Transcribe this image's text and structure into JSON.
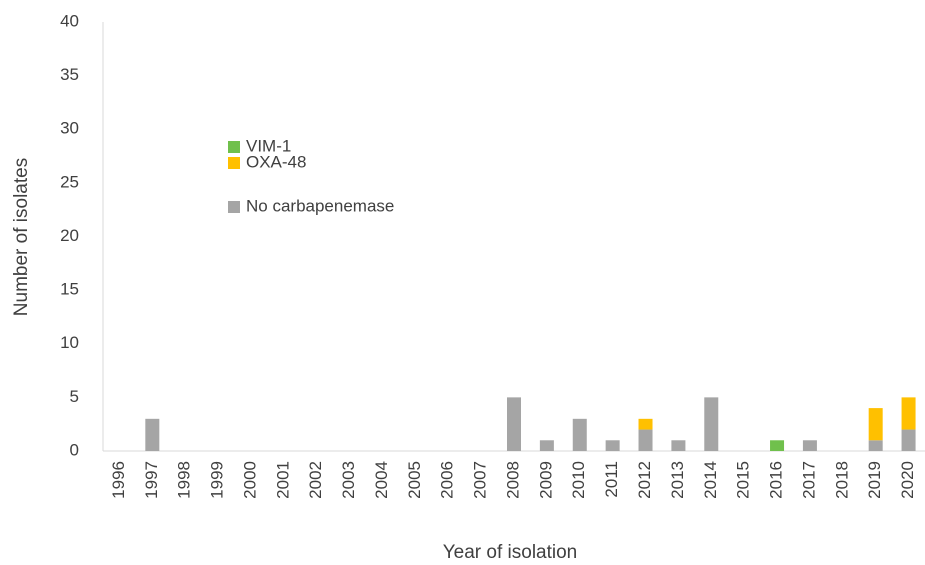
{
  "chart_data": {
    "type": "stacked_bar",
    "categories": [
      "1996",
      "1997",
      "1998",
      "1999",
      "2000",
      "2001",
      "2002",
      "2003",
      "2004",
      "2005",
      "2006",
      "2007",
      "2008",
      "2009",
      "2010",
      "2011",
      "2012",
      "2013",
      "2014",
      "2015",
      "2016",
      "2017",
      "2018",
      "2019",
      "2020"
    ],
    "series": [
      {
        "name": "No carbapenemase",
        "color": "#a5a5a5",
        "values": [
          0,
          3,
          0,
          0,
          0,
          0,
          0,
          0,
          0,
          0,
          0,
          0,
          5,
          1,
          3,
          1,
          2,
          1,
          5,
          0,
          0,
          1,
          0,
          1,
          2
        ]
      },
      {
        "name": "OXA-48",
        "color": "#ffc000",
        "values": [
          0,
          0,
          0,
          0,
          0,
          0,
          0,
          0,
          0,
          0,
          0,
          0,
          0,
          0,
          0,
          0,
          1,
          0,
          0,
          0,
          0,
          0,
          0,
          3,
          3
        ]
      },
      {
        "name": "VIM-1",
        "color": "#70c04c",
        "values": [
          0,
          0,
          0,
          0,
          0,
          0,
          0,
          0,
          0,
          0,
          0,
          0,
          0,
          0,
          0,
          0,
          0,
          0,
          0,
          0,
          1,
          0,
          0,
          0,
          0
        ]
      }
    ],
    "xlabel": "Year of isolation",
    "ylabel": "Number of isolates",
    "ylim": [
      0,
      40
    ],
    "yticks": [
      0,
      5,
      10,
      15,
      20,
      25,
      30,
      35,
      40
    ],
    "grid": false
  }
}
